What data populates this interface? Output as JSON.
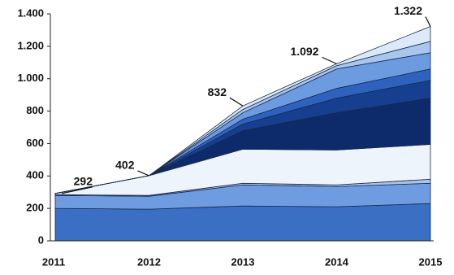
{
  "chart_data": {
    "type": "stacked-area",
    "categories": [
      "2011",
      "2012",
      "2013",
      "2014",
      "2015"
    ],
    "series": [
      {
        "color": "#3a6fc4",
        "values": [
          200,
          195,
          215,
          210,
          230
        ]
      },
      {
        "color": "#6f9ce0",
        "values": [
          80,
          80,
          130,
          125,
          125
        ]
      },
      {
        "color": "#a9c4ea",
        "values": [
          5,
          5,
          10,
          10,
          25
        ]
      },
      {
        "color": "#eef4fb",
        "values": [
          7,
          122,
          210,
          215,
          215
        ]
      },
      {
        "color": "#0d2a6b",
        "values": [
          0,
          0,
          115,
          230,
          285
        ]
      },
      {
        "color": "#173f8f",
        "values": [
          0,
          0,
          40,
          90,
          110
        ]
      },
      {
        "color": "#2f62bf",
        "values": [
          0,
          0,
          30,
          60,
          70
        ]
      },
      {
        "color": "#6d9be0",
        "values": [
          0,
          0,
          40,
          120,
          100
        ]
      },
      {
        "color": "#a8c6ee",
        "values": [
          0,
          0,
          20,
          20,
          70
        ]
      },
      {
        "color": "#dbe9f8",
        "values": [
          0,
          0,
          22,
          12,
          92
        ]
      }
    ],
    "totals": {
      "values": [
        292,
        402,
        832,
        1092,
        1322
      ],
      "value_labels": [
        "292",
        "402",
        "832",
        "1.092",
        "1.322"
      ]
    },
    "ylim": [
      0,
      1400
    ],
    "yticks": [
      0,
      200,
      400,
      600,
      800,
      {
        "value": 1000,
        "label": "1.000"
      },
      {
        "value": 1200,
        "label": "1.200"
      },
      {
        "value": 1400,
        "label": "1.400"
      }
    ]
  }
}
